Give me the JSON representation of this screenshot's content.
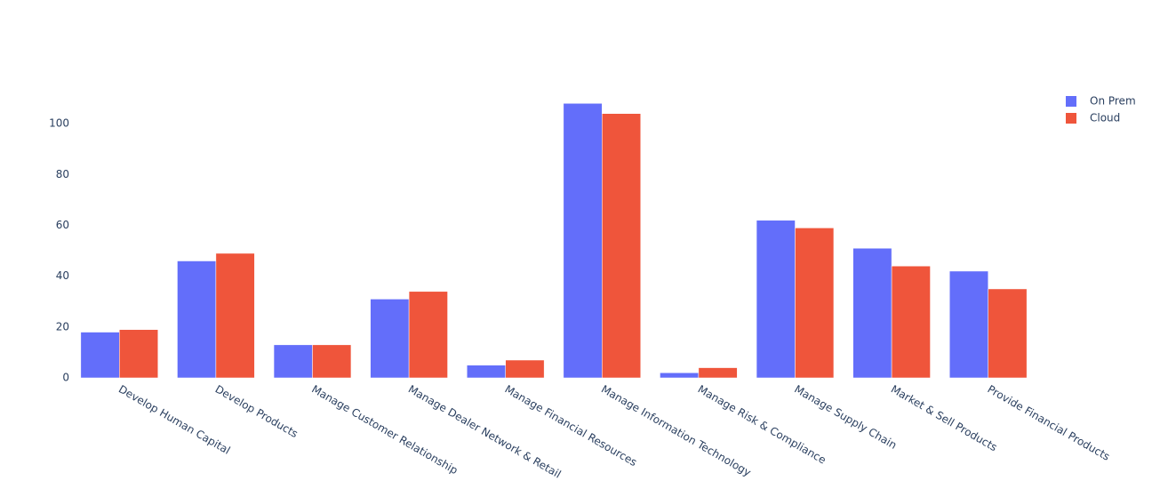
{
  "chart_data": {
    "type": "bar",
    "categories": [
      "Develop Human Capital",
      "Develop Products",
      "Manage Customer Relationship",
      "Manage Dealer Network & Retail",
      "Manage Financial Resources",
      "Manage Information Technology",
      "Manage Risk & Compliance",
      "Manage Supply Chain",
      "Market & Sell Products",
      "Provide Financial Products"
    ],
    "series": [
      {
        "name": "On Prem",
        "color": "#636efa",
        "values": [
          18,
          46,
          13,
          31,
          5,
          108,
          2,
          62,
          51,
          42
        ]
      },
      {
        "name": "Cloud",
        "color": "#EF553B",
        "values": [
          19,
          49,
          13,
          34,
          7,
          104,
          4,
          59,
          44,
          35
        ]
      }
    ],
    "ylim": [
      0,
      113.7
    ],
    "yticks": [
      0,
      20,
      40,
      60,
      80,
      100
    ],
    "grid": false,
    "legend": "top-right"
  }
}
